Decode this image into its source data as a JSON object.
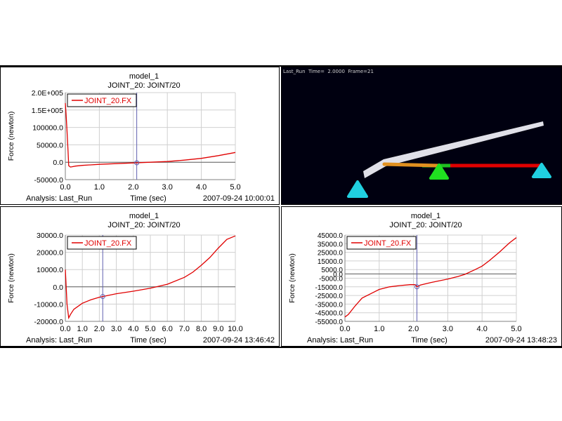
{
  "window": {
    "animation_status": "Last_Run  Time=  2.0000  Frame=21"
  },
  "colors": {
    "trace": "#e00000",
    "cursor": "#6060b0",
    "grid": "#d0d0d0",
    "zero_line": "#606060",
    "triangle_cyan": "#20d0e0",
    "triangle_green": "#20e020",
    "bar_red": "#e00000",
    "bar_orange": "#e09020",
    "blade": "#e0e0e8"
  },
  "plots": [
    {
      "id": "p1",
      "chart_data": {
        "type": "line",
        "title": "model_1",
        "subtitle": "JOINT_20: JOINT/20",
        "xlabel": "Time (sec)",
        "ylabel": "Force (newton)",
        "analysis": "Analysis:  Last_Run",
        "timestamp": "2007-09-24 10:00:01",
        "legend": "JOINT_20.FX",
        "legend_position": "top-left",
        "xlim": [
          0,
          5
        ],
        "ylim": [
          -50000,
          200000
        ],
        "xticks": [
          0,
          1,
          2,
          3,
          4,
          5
        ],
        "xtick_labels": [
          "0.0",
          "1.0",
          "2.0",
          "3.0",
          "4.0",
          "5.0"
        ],
        "yticks": [
          200000,
          150000,
          100000,
          50000,
          0,
          -50000
        ],
        "ytick_labels": [
          "2.0E+005",
          "1.5E+005",
          "100000.0",
          "50000.0",
          "0.0",
          "-50000.0"
        ],
        "grid": true,
        "cursor_x": 2.1,
        "series": [
          {
            "name": "JOINT_20.FX",
            "x": [
              0,
              0.02,
              0.05,
              0.08,
              0.1,
              0.15,
              0.3,
              0.5,
              1.0,
              1.5,
              2.0,
              2.5,
              3.0,
              3.5,
              4.0,
              4.5,
              5.0
            ],
            "values": [
              170000,
              140000,
              90000,
              30000,
              -10000,
              -14000,
              -11000,
              -9000,
              -6000,
              -4000,
              -2000,
              0,
              2000,
              6000,
              11000,
              19000,
              28000
            ]
          }
        ]
      }
    },
    {
      "id": "p2",
      "chart_data": {
        "type": "line",
        "title": "model_1",
        "subtitle": "JOINT_20: JOINT/20",
        "xlabel": "Time (sec)",
        "ylabel": "Force (newton)",
        "analysis": "Analysis:  Last_Run",
        "timestamp": "2007-09-24 13:46:42",
        "legend": "JOINT_20.FX",
        "legend_position": "top-left",
        "xlim": [
          0,
          10
        ],
        "ylim": [
          -20000,
          30000
        ],
        "xticks": [
          0,
          1,
          2,
          3,
          4,
          5,
          6,
          7,
          8,
          9,
          10
        ],
        "xtick_labels": [
          "0.0",
          "1.0",
          "2.0",
          "3.0",
          "4.0",
          "5.0",
          "6.0",
          "7.0",
          "8.0",
          "9.0",
          "10.0"
        ],
        "yticks": [
          30000,
          20000,
          10000,
          0,
          -10000,
          -20000
        ],
        "ytick_labels": [
          "30000.0",
          "20000.0",
          "10000.0",
          "0.0",
          "-10000.0",
          "-20000.0"
        ],
        "grid": true,
        "cursor_x": 2.2,
        "series": [
          {
            "name": "JOINT_20.FX",
            "x": [
              0,
              0.1,
              0.2,
              0.3,
              0.5,
              1.0,
              1.5,
              2.0,
              3.0,
              4.0,
              5.0,
              6.0,
              7.0,
              7.5,
              8.0,
              8.5,
              9.0,
              9.5,
              10.0
            ],
            "values": [
              10000,
              -10000,
              -18000,
              -16000,
              -13000,
              -9500,
              -7500,
              -6000,
              -4000,
              -2500,
              -800,
              1500,
              5500,
              8500,
              12500,
              17000,
              22500,
              27500,
              29500
            ]
          }
        ]
      }
    },
    {
      "id": "p3",
      "chart_data": {
        "type": "line",
        "title": "model_1",
        "subtitle": "JOINT_20: JOINT/20",
        "xlabel": "Time (sec)",
        "ylabel": "Force (newton)",
        "analysis": "Analysis:  Last_Run",
        "timestamp": "2007-09-24 13:48:23",
        "legend": "JOINT_20.FX",
        "legend_position": "top-left",
        "xlim": [
          0,
          5
        ],
        "ylim": [
          -55000,
          45000
        ],
        "xticks": [
          0,
          1,
          2,
          3,
          4,
          5
        ],
        "xtick_labels": [
          "0.0",
          "1.0",
          "2.0",
          "3.0",
          "4.0",
          "5.0"
        ],
        "yticks": [
          45000,
          35000,
          25000,
          15000,
          5000,
          0,
          -5000,
          -15000,
          -25000,
          -35000,
          -45000,
          -55000
        ],
        "ytick_labels": [
          "45000.0",
          "35000.0",
          "25000.0",
          "15000.0",
          "5000.0",
          "0.0",
          "-5000.0",
          "-15000.0",
          "-25000.0",
          "-35000.0",
          "-45000.0",
          "-55000.0"
        ],
        "grid": true,
        "cursor_x": 2.1,
        "series": [
          {
            "name": "JOINT_20.FX",
            "x": [
              0,
              0.1,
              0.3,
              0.5,
              0.8,
              1.0,
              1.3,
              1.6,
              1.9,
              2.05,
              2.1,
              2.2,
              2.5,
              3.0,
              3.3,
              3.5,
              3.8,
              4.0,
              4.2,
              4.5,
              4.8,
              5.0
            ],
            "values": [
              -50000,
              -47000,
              -37000,
              -28000,
              -22000,
              -18000,
              -15000,
              -13500,
              -12500,
              -12500,
              -15000,
              -13000,
              -10000,
              -6000,
              -3000,
              -500,
              5000,
              9000,
              15000,
              25000,
              36000,
              42000
            ]
          }
        ]
      }
    }
  ]
}
